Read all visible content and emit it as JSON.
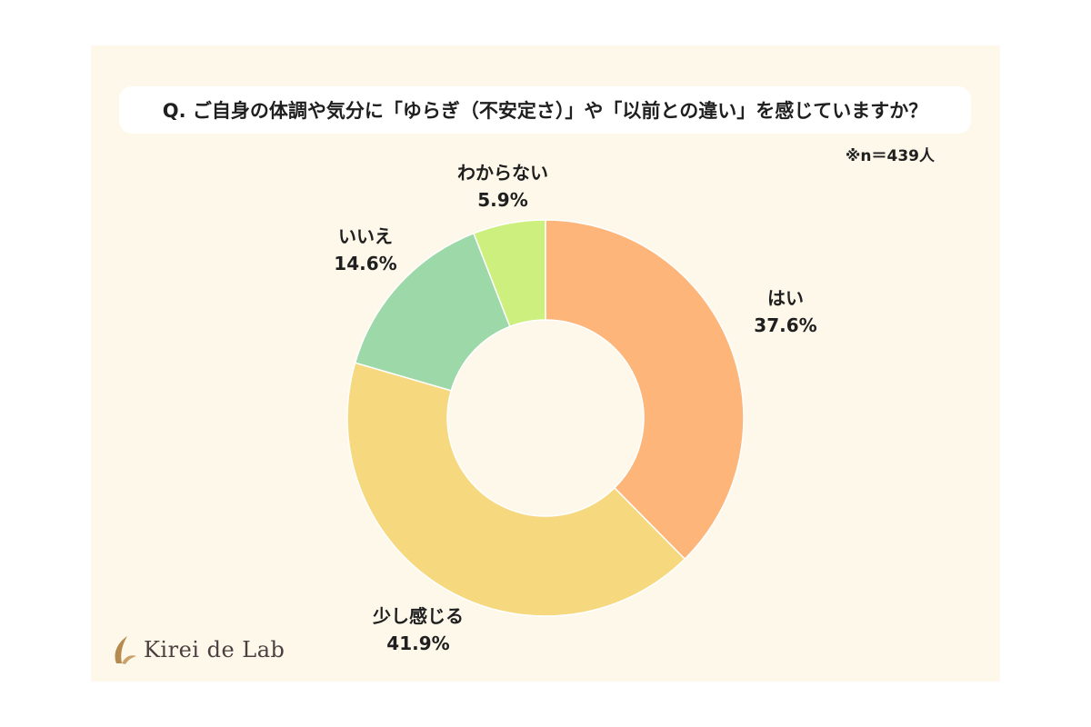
{
  "question": "Q. ご自身の体調や気分に「ゆらぎ（不安定さ）」や「以前との違い」を感じていますか？",
  "sample_size": "※n＝439人",
  "brand": {
    "name": "Kirei de Lab"
  },
  "chart_data": {
    "type": "pie",
    "donut": true,
    "start_angle_deg": 0,
    "direction": "clockwise",
    "slices": [
      {
        "label": "はい",
        "value": 37.6,
        "value_label": "37.6%",
        "color": "#fdb57a"
      },
      {
        "label": "少し感じる",
        "value": 41.9,
        "value_label": "41.9%",
        "color": "#f6d97e"
      },
      {
        "label": "いいえ",
        "value": 14.6,
        "value_label": "14.6%",
        "color": "#9dd8a9"
      },
      {
        "label": "わからない",
        "value": 5.9,
        "value_label": "5.9%",
        "color": "#cdef7d"
      }
    ]
  }
}
